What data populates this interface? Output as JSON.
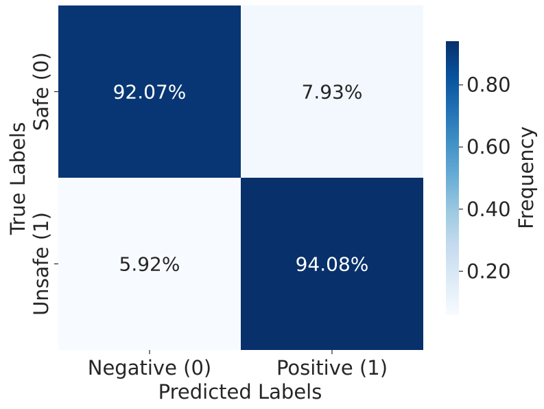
{
  "chart_data": {
    "type": "heatmap",
    "xlabel": "Predicted Labels",
    "ylabel": "True Labels",
    "x_categories": [
      "Negative (0)",
      "Positive (1)"
    ],
    "y_categories": [
      "Safe (0)",
      "Unsafe (1)"
    ],
    "values": [
      [
        0.9207,
        0.0793
      ],
      [
        0.0592,
        0.9408
      ]
    ],
    "cell_labels": [
      [
        "92.07%",
        "7.93%"
      ],
      [
        "5.92%",
        "94.08%"
      ]
    ],
    "colorbar": {
      "label": "Frequency",
      "range": [
        0.0592,
        0.9408
      ],
      "ticks": [
        0.2,
        0.4,
        0.6,
        0.8
      ],
      "tick_labels": [
        "0.20",
        "0.40",
        "0.60",
        "0.80"
      ]
    },
    "colormap": "Blues",
    "colors": {
      "low": "#f7fbff",
      "high": "#08306b",
      "text_dark": "#262626",
      "text_light": "#ffffff"
    }
  }
}
